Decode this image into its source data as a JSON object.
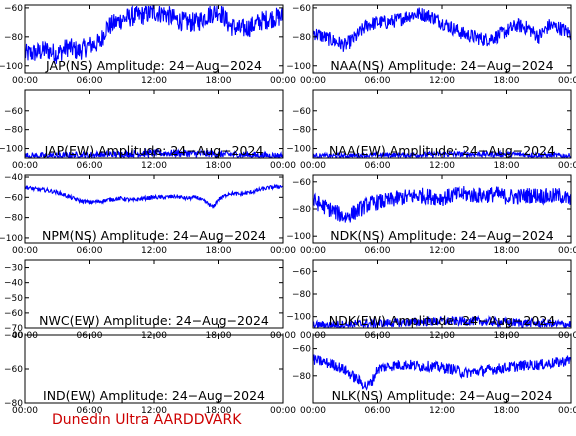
{
  "x_tick_labels": [
    "00:00",
    "06:00",
    "12:00",
    "18:00",
    "00:00"
  ],
  "x_range_hours": [
    0,
    24
  ],
  "line_color": "#0000ff",
  "credit_color": "#cc0000",
  "credit": "Dunedin Ultra AARDDVARK",
  "chart_data": [
    {
      "type": "line",
      "grid": false,
      "title": "JAP(NS) Amplitude: 24−Aug−2024",
      "ylim": [
        -105,
        -58
      ],
      "yticks": [
        -60,
        -80,
        -100
      ],
      "ytick_labels": [
        "−60",
        "−80",
        "−100"
      ],
      "x": [
        0,
        1,
        2,
        3,
        4,
        5,
        6,
        7,
        7.5,
        8,
        9,
        10,
        11,
        12,
        13,
        14,
        15,
        16,
        17,
        18,
        18.5,
        19,
        20,
        21,
        22,
        23,
        24
      ],
      "y": [
        -92,
        -91,
        -89,
        -92,
        -87,
        -90,
        -86,
        -84,
        -74,
        -72,
        -68,
        -66,
        -65,
        -63,
        -64,
        -68,
        -70,
        -70,
        -65,
        -62,
        -66,
        -72,
        -75,
        -73,
        -69,
        -67,
        -66
      ],
      "noise": 7
    },
    {
      "type": "line",
      "grid": false,
      "title": "NAA(NS) Amplitude: 24−Aug−2024",
      "ylim": [
        -105,
        -58
      ],
      "yticks": [
        -60,
        -80,
        -100
      ],
      "ytick_labels": [
        "−60",
        "−80",
        "−100"
      ],
      "x": [
        0,
        1,
        2,
        3,
        4,
        5,
        6,
        7,
        8,
        9,
        10,
        11,
        12,
        13,
        14,
        15,
        16,
        17,
        18,
        19,
        20,
        21,
        22,
        23,
        24
      ],
      "y": [
        -77,
        -80,
        -83,
        -86,
        -80,
        -72,
        -70,
        -70,
        -68,
        -65,
        -64,
        -66,
        -70,
        -74,
        -78,
        -80,
        -82,
        -80,
        -76,
        -72,
        -74,
        -80,
        -72,
        -74,
        -78
      ],
      "noise": 5
    },
    {
      "type": "line",
      "grid": false,
      "title": "JAP(EW) Amplitude: 24−Aug−2024",
      "ylim": [
        -110,
        -38
      ],
      "yticks": [
        -60,
        -80,
        -100
      ],
      "ytick_labels": [
        "−60",
        "−80",
        "−100"
      ],
      "x": [
        0,
        3,
        6,
        9,
        12,
        15,
        18,
        21,
        24
      ],
      "y": [
        -108,
        -108,
        -107,
        -106,
        -105,
        -105,
        -106,
        -107,
        -108
      ],
      "noise": 4
    },
    {
      "type": "line",
      "grid": false,
      "title": "NAA(EW) Amplitude: 24−Aug−2024",
      "ylim": [
        -110,
        -38
      ],
      "yticks": [
        -60,
        -80,
        -100
      ],
      "ytick_labels": [
        "−60",
        "−80",
        "−100"
      ],
      "x": [
        0,
        3,
        6,
        9,
        12,
        15,
        18,
        21,
        24
      ],
      "y": [
        -108,
        -108,
        -107,
        -107,
        -106,
        -106,
        -106,
        -107,
        -108
      ],
      "noise": 3
    },
    {
      "type": "line",
      "grid": false,
      "title": "NPM(NS) Amplitude: 24−Aug−2024",
      "ylim": [
        -105,
        -38
      ],
      "yticks": [
        -40,
        -60,
        -80,
        -100
      ],
      "ytick_labels": [
        "−40",
        "−60",
        "−80",
        "−100"
      ],
      "x": [
        0,
        1,
        2,
        3,
        4,
        5,
        6,
        7,
        8,
        9,
        10,
        11,
        12,
        13,
        14,
        15,
        16,
        17,
        17.5,
        18,
        19,
        20,
        21,
        22,
        23,
        24
      ],
      "y": [
        -50,
        -52,
        -53,
        -55,
        -59,
        -63,
        -65,
        -64,
        -62,
        -61,
        -63,
        -61,
        -60,
        -60,
        -59,
        -61,
        -60,
        -66,
        -70,
        -62,
        -56,
        -57,
        -55,
        -52,
        -50,
        -49
      ],
      "noise": 2
    },
    {
      "type": "line",
      "grid": false,
      "title": "NDK(NS) Amplitude: 24−Aug−2024",
      "ylim": [
        -105,
        -55
      ],
      "yticks": [
        -60,
        -80,
        -100
      ],
      "ytick_labels": [
        "−60",
        "−80",
        "−100"
      ],
      "x": [
        0,
        1,
        2,
        3,
        4,
        5,
        6,
        7,
        8,
        9,
        10,
        11,
        12,
        13,
        14,
        15,
        16,
        17,
        18,
        19,
        20,
        21,
        22,
        23,
        24
      ],
      "y": [
        -74,
        -78,
        -82,
        -86,
        -82,
        -77,
        -75,
        -74,
        -72,
        -71,
        -70,
        -71,
        -72,
        -70,
        -69,
        -70,
        -70,
        -69,
        -71,
        -71,
        -70,
        -70,
        -71,
        -70,
        -74
      ],
      "noise": 6
    },
    {
      "type": "line",
      "grid": false,
      "title": "NWC(EW) Amplitude: 24−Aug−2024",
      "ylim": [
        -70,
        -25
      ],
      "yticks": [
        -30,
        -40,
        -50,
        -60,
        -70
      ],
      "ytick_labels": [
        "−30",
        "−40",
        "−50",
        "−60",
        "−70"
      ],
      "x": [],
      "y": [],
      "noise": 0
    },
    {
      "type": "line",
      "grid": false,
      "title": "NDK(EW) Amplitude: 24−Aug−2024",
      "ylim": [
        -110,
        -50
      ],
      "yticks": [
        -60,
        -80,
        -100
      ],
      "ytick_labels": [
        "−60",
        "−80",
        "−100"
      ],
      "x": [
        0,
        3,
        6,
        9,
        12,
        15,
        18,
        21,
        24
      ],
      "y": [
        -108,
        -107,
        -106,
        -105,
        -104,
        -104,
        -105,
        -106,
        -107
      ],
      "noise": 4
    },
    {
      "type": "line",
      "grid": false,
      "title": "IND(EW) Amplitude: 24−Aug−2024",
      "ylim": [
        -80,
        -40
      ],
      "yticks": [
        -40,
        -60,
        -80
      ],
      "ytick_labels": [
        "−40",
        "−60",
        "−80"
      ],
      "x": [],
      "y": [],
      "noise": 0
    },
    {
      "type": "line",
      "grid": false,
      "title": "NLK(NS) Amplitude: 24−Aug−2024",
      "ylim": [
        -100,
        -50
      ],
      "yticks": [
        -60,
        -80
      ],
      "ytick_labels": [
        "−60",
        "−80"
      ],
      "x": [
        0,
        1,
        2,
        3,
        4,
        5,
        5.5,
        6,
        7,
        8,
        9,
        10,
        11,
        12,
        13,
        14,
        15,
        16,
        17,
        18,
        19,
        20,
        21,
        22,
        23,
        24
      ],
      "y": [
        -68,
        -70,
        -72,
        -76,
        -82,
        -88,
        -84,
        -75,
        -73,
        -72,
        -72,
        -73,
        -73,
        -74,
        -75,
        -78,
        -77,
        -76,
        -75,
        -74,
        -73,
        -72,
        -72,
        -71,
        -70,
        -68
      ],
      "noise": 4
    }
  ]
}
